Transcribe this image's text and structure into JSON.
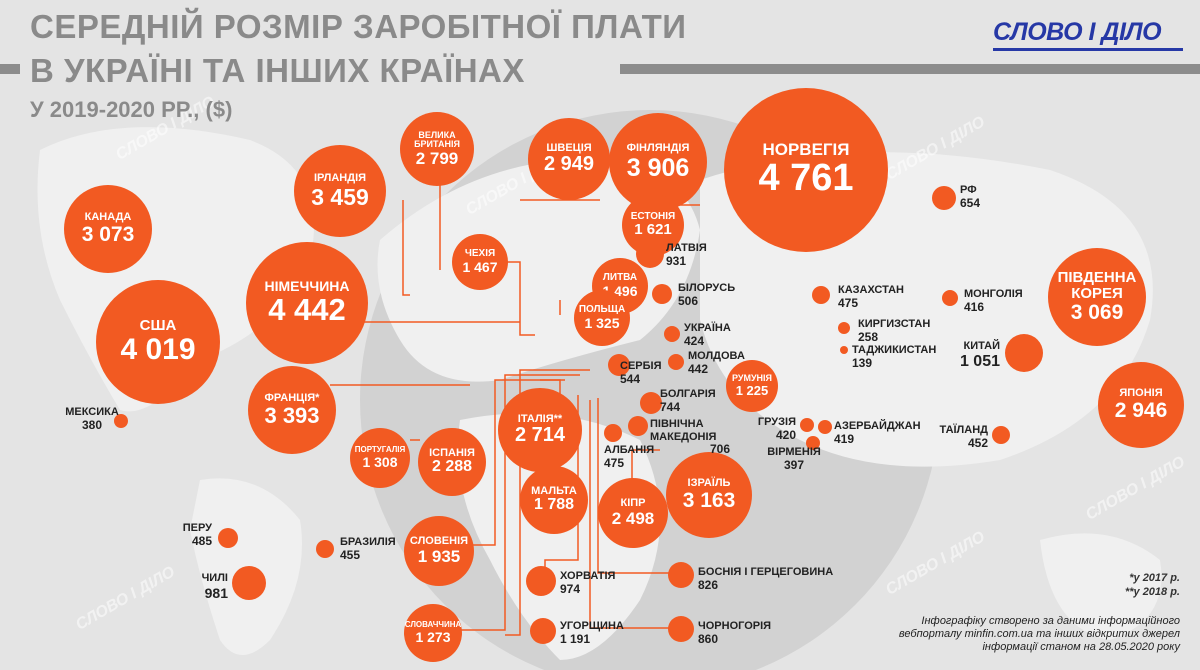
{
  "header": {
    "title_line1": "СЕРЕДНІЙ РОЗМІР ЗАРОБІТНОЇ ПЛАТИ",
    "title_line2": "В УКРАЇНІ ТА ІНШИХ КРАЇНАХ",
    "subtitle": "У 2019-2020 РР., ($)",
    "logo": "СЛОВО І ДІЛО"
  },
  "countries": {
    "norway": {
      "name": "НОРВЕГІЯ",
      "value": "4 761"
    },
    "germany": {
      "name": "НІМЕЧЧИНА",
      "value": "4 442"
    },
    "usa": {
      "name": "США",
      "value": "4 019"
    },
    "finland": {
      "name": "ФІНЛЯНДІЯ",
      "value": "3 906"
    },
    "ireland": {
      "name": "ІРЛАНДІЯ",
      "value": "3 459"
    },
    "france": {
      "name": "ФРАНЦІЯ*",
      "value": "3 393"
    },
    "israel": {
      "name": "ІЗРАЇЛЬ",
      "value": "3 163"
    },
    "canada": {
      "name": "КАНАДА",
      "value": "3 073"
    },
    "south_korea": {
      "name": "ПІВДЕННА КОРЕЯ",
      "value": "3 069"
    },
    "sweden": {
      "name": "ШВЕЦІЯ",
      "value": "2 949"
    },
    "japan": {
      "name": "ЯПОНІЯ",
      "value": "2 946"
    },
    "uk": {
      "name": "ВЕЛИКА БРИТАНІЯ",
      "value": "2 799"
    },
    "italy": {
      "name": "ІТАЛІЯ**",
      "value": "2 714"
    },
    "cyprus": {
      "name": "КІПР",
      "value": "2 498"
    },
    "spain": {
      "name": "ІСПАНІЯ",
      "value": "2 288"
    },
    "slovenia": {
      "name": "СЛОВЕНІЯ",
      "value": "1 935"
    },
    "malta": {
      "name": "МАЛЬТА",
      "value": "1 788"
    },
    "estonia": {
      "name": "ЕСТОНІЯ",
      "value": "1 621"
    },
    "lithuania": {
      "name": "ЛИТВА",
      "value": "1 496"
    },
    "czechia": {
      "name": "ЧЕХІЯ",
      "value": "1 467"
    },
    "poland": {
      "name": "ПОЛЬЩА",
      "value": "1 325"
    },
    "portugal": {
      "name": "ПОРТУГАЛІЯ",
      "value": "1 308"
    },
    "slovakia": {
      "name": "СЛОВАЧЧИНА",
      "value": "1 273"
    },
    "romania": {
      "name": "РУМУНІЯ",
      "value": "1 225"
    },
    "hungary": {
      "name": "УГОРЩИНА",
      "value": "1 191"
    },
    "china": {
      "name": "КИТАЙ",
      "value": "1 051"
    },
    "chile": {
      "name": "ЧИЛІ",
      "value": "981"
    },
    "croatia": {
      "name": "ХОРВАТІЯ",
      "value": "974"
    },
    "latvia": {
      "name": "ЛАТВІЯ",
      "value": "931"
    },
    "montenegro": {
      "name": "ЧОРНОГОРІЯ",
      "value": "860"
    },
    "bih": {
      "name": "БОСНІЯ І ГЕРЦЕГОВИНА",
      "value": "826"
    },
    "bulgaria": {
      "name": "БОЛГАРІЯ",
      "value": "744"
    },
    "north_macedonia": {
      "name": "ПІВНІЧНА МАКЕДОНІЯ",
      "value": "706"
    },
    "russia": {
      "name": "РФ",
      "value": "654"
    },
    "serbia": {
      "name": "СЕРБІЯ",
      "value": "544"
    },
    "belarus": {
      "name": "БІЛОРУСЬ",
      "value": "506"
    },
    "peru": {
      "name": "ПЕРУ",
      "value": "485"
    },
    "kazakhstan": {
      "name": "КАЗАХСТАН",
      "value": "475"
    },
    "albania": {
      "name": "АЛБАНІЯ",
      "value": "475"
    },
    "brazil": {
      "name": "БРАЗИЛІЯ",
      "value": "455"
    },
    "thailand": {
      "name": "ТАЇЛАНД",
      "value": "452"
    },
    "moldova": {
      "name": "МОЛДОВА",
      "value": "442"
    },
    "ukraine": {
      "name": "УКРАЇНА",
      "value": "424"
    },
    "georgia": {
      "name": "ГРУЗІЯ",
      "value": "420"
    },
    "azerbaijan": {
      "name": "АЗЕРБАЙДЖАН",
      "value": "419"
    },
    "mongolia": {
      "name": "МОНГОЛІЯ",
      "value": "416"
    },
    "armenia": {
      "name": "ВІРМЕНІЯ",
      "value": "397"
    },
    "mexico": {
      "name": "МЕКСИКА",
      "value": "380"
    },
    "kyrgyzstan": {
      "name": "КИРГИЗСТАН",
      "value": "258"
    },
    "tajikistan": {
      "name": "ТАДЖИКИСТАН",
      "value": "139"
    }
  },
  "footnotes": {
    "note1": "*у 2017 р.",
    "note2": "**у 2018 р.",
    "source": "Інфографіку створено за даними інформаційного вебпорталу minfin.com.ua та інших відкритих джерел інформації станом на 28.05.2020 року"
  },
  "colors": {
    "bubble": "#f25a22",
    "title": "#8a8a8a",
    "logo": "#2638a6",
    "background": "#e4e4e4"
  }
}
